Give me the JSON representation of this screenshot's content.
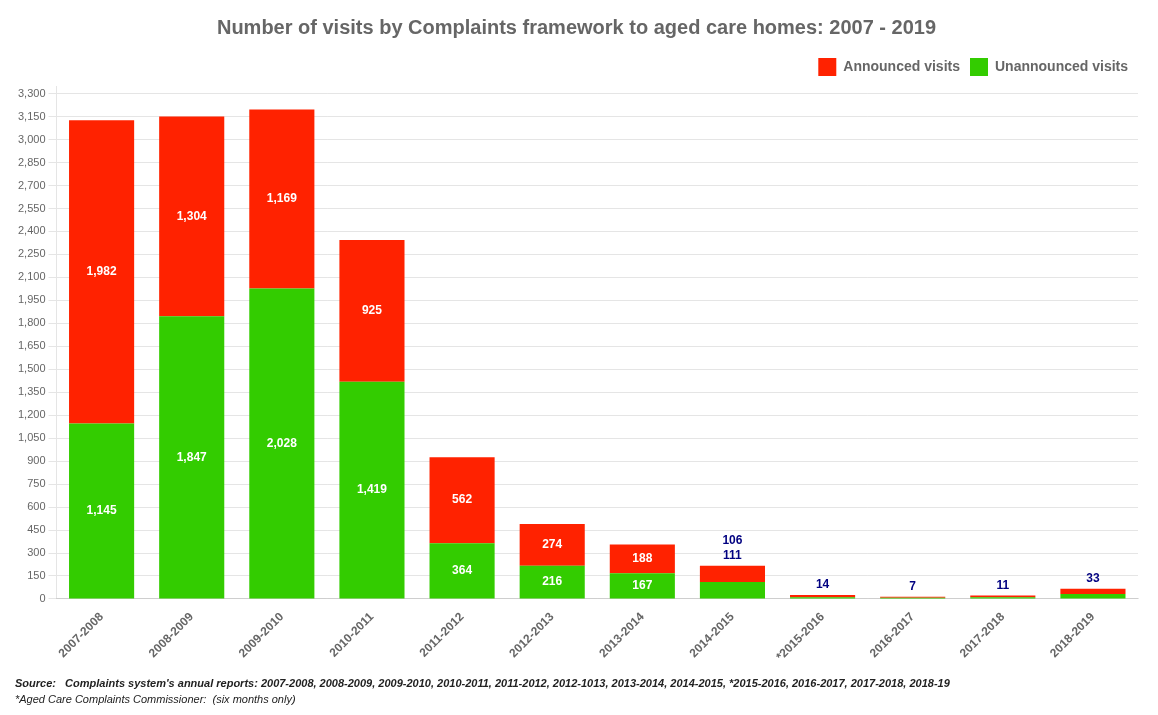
{
  "chart_data": {
    "type": "bar",
    "title": "Number of visits by Complaints framework to aged care homes: 2007 - 2019",
    "categories": [
      "2007-2008",
      "2008-2009",
      "2009-2010",
      "2010-2011",
      "2011-2012",
      "2012-2013",
      "2013-2014",
      "2014-2015",
      "*2015-2016",
      "2016-2017",
      "2017-2018",
      "2018-2019"
    ],
    "series": [
      {
        "name": "Unannounced visits",
        "color": "#33cc00",
        "values": [
          1145,
          1847,
          2028,
          1419,
          364,
          216,
          167,
          111,
          11,
          7,
          11,
          33
        ],
        "value_labels": [
          "1,145",
          "1,847",
          "2,028",
          "1,419",
          "364",
          "216",
          "167",
          "111",
          null,
          null,
          null,
          null
        ]
      },
      {
        "name": "Announced visits",
        "color": "#ff2200",
        "values": [
          1982,
          1304,
          1169,
          925,
          562,
          274,
          188,
          106,
          14,
          7,
          11,
          33
        ],
        "value_labels": [
          "1,982",
          "1,304",
          "1,169",
          "925",
          "562",
          "274",
          "188",
          "106",
          "14",
          "7",
          "11",
          "33"
        ]
      }
    ],
    "stacked": true,
    "data_labels": true,
    "ylim": [
      0,
      3350
    ],
    "yticks": [
      0,
      150,
      300,
      450,
      600,
      750,
      900,
      {
        "value": 1050,
        "label": "1,050"
      },
      {
        "value": 1200,
        "label": "1,200"
      },
      {
        "value": 1350,
        "label": "1,350"
      },
      {
        "value": 1500,
        "label": "1,500"
      },
      {
        "value": 1650,
        "label": "1,650"
      },
      {
        "value": 1800,
        "label": "1,800"
      },
      {
        "value": 1950,
        "label": "1,950"
      },
      {
        "value": 2100,
        "label": "2,100"
      },
      {
        "value": 2250,
        "label": "2,250"
      },
      {
        "value": 2400,
        "label": "2,400"
      },
      {
        "value": 2550,
        "label": "2,550"
      },
      {
        "value": 2700,
        "label": "2,700"
      },
      {
        "value": 2850,
        "label": "2,850"
      },
      {
        "value": 3000,
        "label": "3,000"
      },
      {
        "value": 3150,
        "label": "3,150"
      },
      {
        "value": 3300,
        "label": "3,300"
      }
    ],
    "grid": true,
    "legend": "upper right",
    "annotations": [
      "Source:   Complaints system's annual reports: 2007-2008, 2008-2009, 2009-2010, 2010-2011, 2011-2012, 2012-1013, 2013-2014, 2014-2015, *2015-2016, 2016-2017, 2017-2018, 2018-19",
      "*Aged Care Complaints Commissioner:  (six months only)"
    ]
  }
}
